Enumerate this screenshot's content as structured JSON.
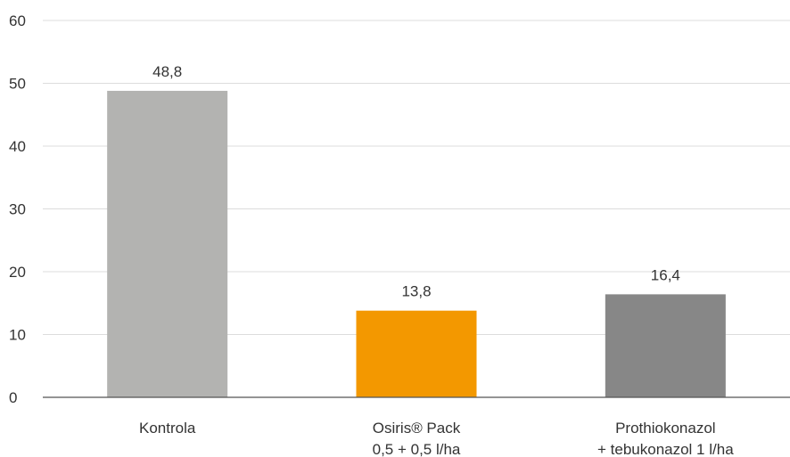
{
  "chart_data": {
    "type": "bar",
    "title": "",
    "xlabel": "",
    "ylabel": "",
    "ylim": [
      0,
      60
    ],
    "yticks": [
      0,
      10,
      20,
      30,
      40,
      50,
      60
    ],
    "grid": true,
    "legend": "none",
    "categories": [
      [
        "Kontrola"
      ],
      [
        "Osiris® Pack",
        "0,5 + 0,5 l/ha"
      ],
      [
        "Prothiokonazol",
        "+ tebukonazol 1 l/ha"
      ]
    ],
    "values": [
      48.8,
      13.8,
      16.4
    ],
    "value_labels": [
      "48,8",
      "13,8",
      "16,4"
    ],
    "colors": [
      "#b3b3b1",
      "#f39800",
      "#878787"
    ]
  }
}
